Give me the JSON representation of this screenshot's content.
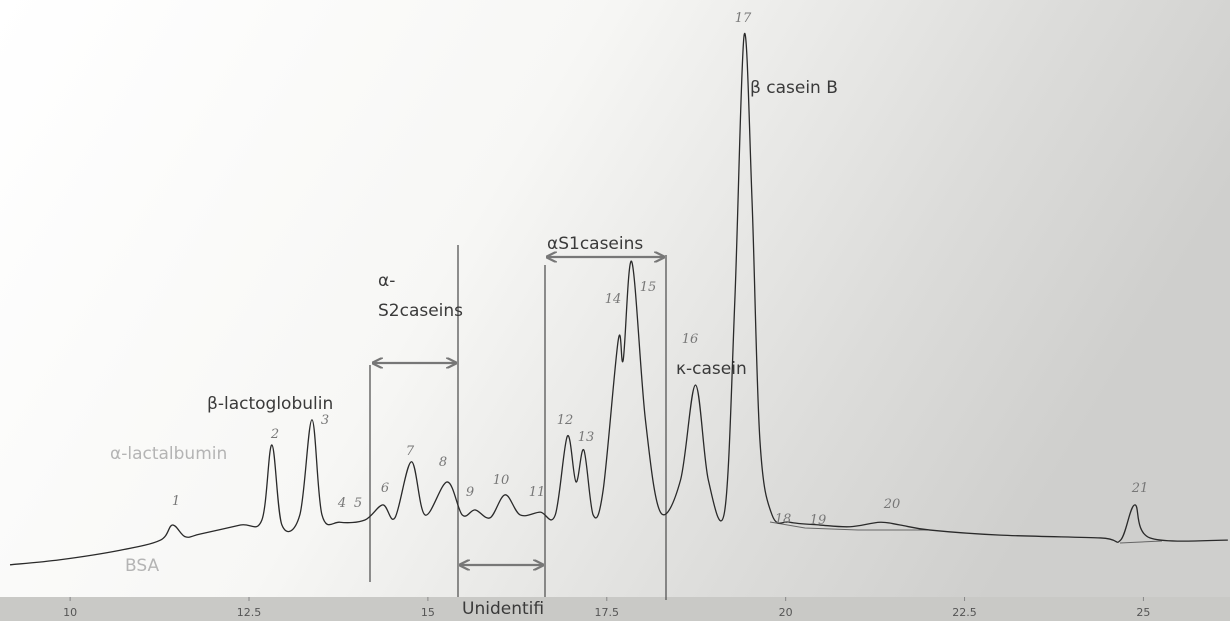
{
  "chart_data": {
    "type": "line",
    "xlim": [
      9.02,
      26.21
    ],
    "ylim": [
      0,
      100
    ],
    "xticks": [
      10,
      12.5,
      15,
      17.5,
      20,
      22.5,
      25
    ],
    "x": [
      9.16,
      9.86,
      10.7,
      11.26,
      11.43,
      11.61,
      11.82,
      12.38,
      12.68,
      12.82,
      12.96,
      13.21,
      13.38,
      13.52,
      13.77,
      14.12,
      14.37,
      14.54,
      14.77,
      14.96,
      15.27,
      15.48,
      15.66,
      15.87,
      16.08,
      16.29,
      16.57,
      16.78,
      16.95,
      17.07,
      17.18,
      17.31,
      17.45,
      17.66,
      17.73,
      17.85,
      18.04,
      18.25,
      18.53,
      18.74,
      18.92,
      19.15,
      19.29,
      19.42,
      19.53,
      19.64,
      19.81,
      20.06,
      20.48,
      20.9,
      21.32,
      21.6,
      22.02,
      23.0,
      24.4,
      24.68,
      24.88,
      25.09,
      26.18
    ],
    "series": [
      {
        "color": "#2a2a2a",
        "values": [
          4.5,
          5.4,
          7.1,
          8.9,
          11.6,
          9.5,
          10.0,
          11.6,
          12.5,
          25.9,
          11.6,
          13.4,
          30.4,
          13.4,
          12.1,
          12.5,
          15.2,
          12.9,
          22.9,
          13.4,
          19.3,
          13.4,
          14.3,
          12.9,
          17.0,
          13.4,
          13.9,
          13.4,
          27.5,
          19.3,
          25.0,
          13.4,
          17.9,
          44.6,
          41.1,
          58.6,
          30.4,
          13.9,
          19.6,
          36.6,
          19.6,
          14.3,
          51.8,
          99.1,
          69.6,
          26.8,
          13.4,
          12.1,
          11.6,
          11.3,
          12.1,
          11.6,
          10.7,
          9.8,
          9.3,
          8.9,
          15.2,
          9.3,
          8.9
        ]
      }
    ],
    "peak_labels": [
      "1",
      "2",
      "3",
      "4",
      "5",
      "6",
      "7",
      "8",
      "9",
      "10",
      "11",
      "12",
      "13",
      "14",
      "15",
      "16",
      "17",
      "18",
      "19",
      "20",
      "21"
    ],
    "annotations": {
      "bsa": "BSA",
      "alpha_lactalbumin": "α-lactalbumin",
      "beta_lactoglobulin": "β-lactoglobulin",
      "alpha_s2_caseins": [
        "α-",
        "S2caseins"
      ],
      "alpha_s1_caseins": "αS1caseins",
      "kappa_casein": "κ-casein",
      "beta_casein_b": "β casein B",
      "unidentified": "Unidentifi"
    }
  }
}
